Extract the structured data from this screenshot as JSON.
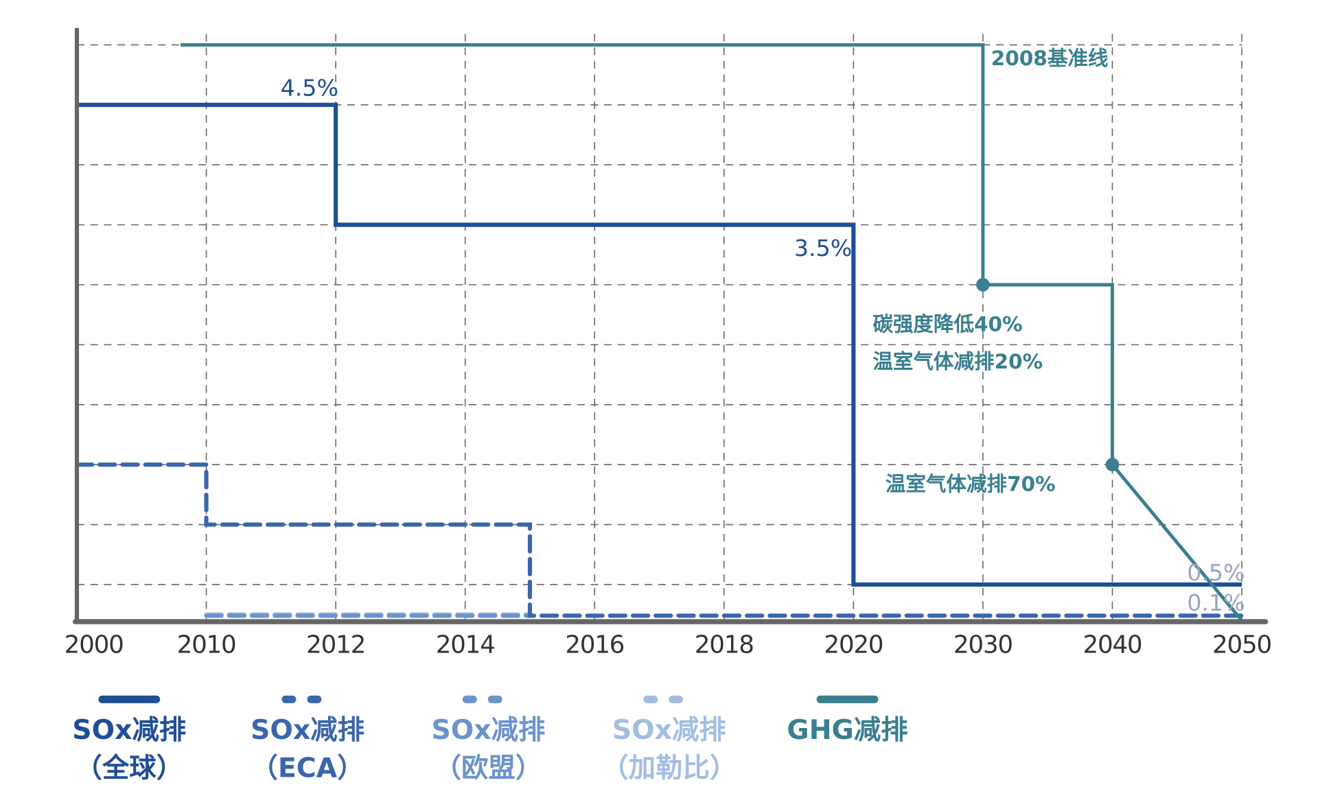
{
  "chart_data": {
    "type": "line",
    "title": "",
    "xlabel": "",
    "ylabel": "",
    "categories": [
      "2000",
      "2010",
      "2012",
      "2014",
      "2016",
      "2018",
      "2020",
      "2030",
      "2040",
      "2050"
    ],
    "y_units_note_free": true,
    "ylim": [
      0.4,
      10
    ],
    "grid": true,
    "legend_position": "bottom",
    "series": [
      {
        "name": "SOx减排（全球）",
        "legend_line1": "SOx减排",
        "legend_line2": "（全球）",
        "color": "#1f4e96",
        "style": "solid",
        "points": [
          [
            2000,
            9
          ],
          [
            2012,
            9
          ],
          [
            2012,
            7
          ],
          [
            2020,
            7
          ],
          [
            2020,
            1
          ],
          [
            2050,
            1
          ]
        ]
      },
      {
        "name": "SOx减排（ECA）",
        "legend_line1": "SOx减排",
        "legend_line2": "（ECA）",
        "color": "#3a66ad",
        "style": "dashed",
        "points": [
          [
            2000,
            3
          ],
          [
            2010,
            3
          ],
          [
            2010,
            2
          ],
          [
            2015,
            2
          ],
          [
            2015,
            0.48
          ],
          [
            2050,
            0.48
          ]
        ]
      },
      {
        "name": "SOx减排（欧盟）",
        "legend_line1": "SOx减排",
        "legend_line2": "（欧盟）",
        "color": "#6b93cc",
        "style": "dashed",
        "points": [
          [
            2010,
            0.48
          ],
          [
            2015,
            0.48
          ]
        ]
      },
      {
        "name": "SOx减排（加勒比）",
        "legend_line1": "SOx减排",
        "legend_line2": "（加勒比）",
        "color": "#a3bde2",
        "style": "dashed",
        "points": [
          [
            2010,
            0.5
          ],
          [
            2015,
            0.5
          ]
        ]
      },
      {
        "name": "GHG减排",
        "legend_line1": "GHG减排",
        "legend_line2": "",
        "color": "#3a7f8f",
        "style": "solid",
        "points": [
          [
            2008,
            10
          ],
          [
            2030,
            10
          ],
          [
            2030,
            6
          ],
          [
            2040,
            6
          ],
          [
            2040,
            3
          ],
          [
            2050,
            0.4
          ]
        ],
        "markers": [
          [
            2030,
            6
          ],
          [
            2040,
            3
          ]
        ]
      }
    ],
    "annotations": [
      {
        "text": "4.5%",
        "color": "#1f4e96"
      },
      {
        "text": "3.5%",
        "color": "#1f4e96"
      },
      {
        "text": "2008基准线",
        "color": "#3a7f8f"
      },
      {
        "text": "碳强度降低40%",
        "color": "#3a7f8f"
      },
      {
        "text": "温室气体减排20%",
        "color": "#3a7f8f"
      },
      {
        "text": "温室气体减排70%",
        "color": "#3a7f8f"
      },
      {
        "text": "0.5%",
        "color": "#98a6c0"
      },
      {
        "text": "0.1%",
        "color": "#98a6c0"
      }
    ]
  }
}
